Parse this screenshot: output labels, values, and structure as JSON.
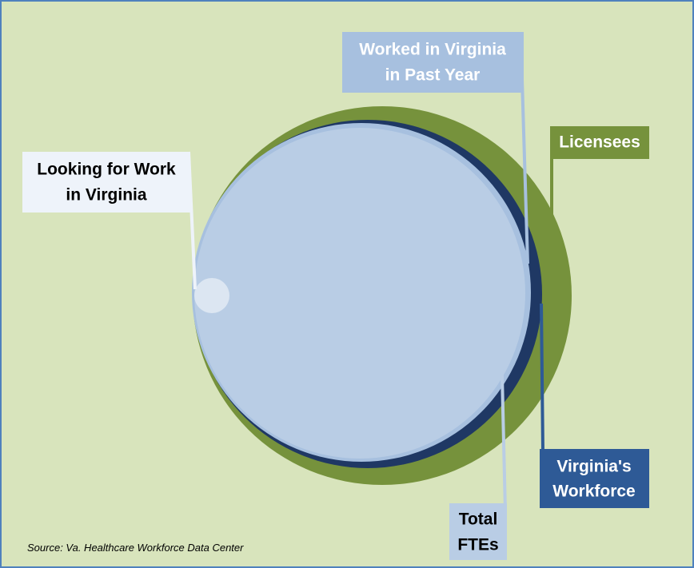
{
  "nodes": [
    {
      "label": [
        "Worked in Virginia",
        "in Past Year"
      ]
    },
    {
      "label": [
        "Licensees"
      ]
    },
    {
      "label": [
        "Looking for Work",
        "in Virginia"
      ]
    },
    {
      "label": [
        "Virginia's",
        "Workforce"
      ]
    },
    {
      "label": [
        "Total",
        "FTEs"
      ]
    }
  ],
  "source": "Source:  Va. Healthcare Workforce Data Center"
}
